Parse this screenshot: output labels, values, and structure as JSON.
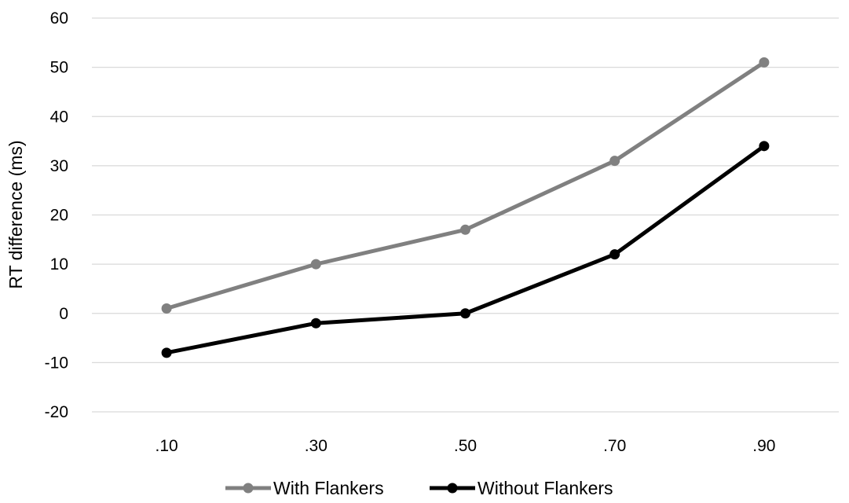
{
  "chart_data": {
    "type": "line",
    "categories": [
      ".10",
      ".30",
      ".50",
      ".70",
      ".90"
    ],
    "series": [
      {
        "name": "With Flankers",
        "values": [
          1,
          10,
          17,
          31,
          51
        ],
        "color": "#808080"
      },
      {
        "name": "Without Flankers",
        "values": [
          -8,
          -2,
          0,
          12,
          34
        ],
        "color": "#000000"
      }
    ],
    "ylabel": "RT difference (ms)",
    "ylim": [
      -20,
      60
    ],
    "yticks": [
      "-20",
      "-10",
      "0",
      "10",
      "20",
      "30",
      "40",
      "50",
      "60"
    ],
    "grid": true,
    "legend": "bottom-center"
  }
}
